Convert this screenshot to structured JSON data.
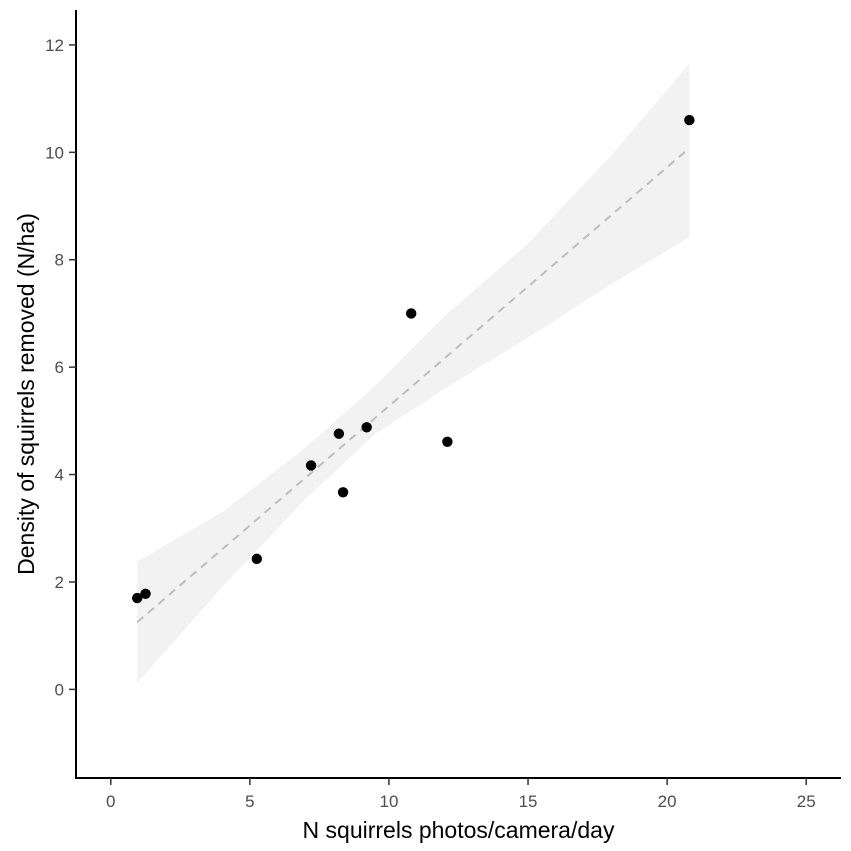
{
  "chart_data": {
    "type": "scatter",
    "title": "",
    "xlabel": "N squirrels photos/camera/day",
    "ylabel": "Density of squirrels removed (N/ha)",
    "xlim": [
      -1.25,
      26.25
    ],
    "ylim": [
      -1.65,
      12.65
    ],
    "x_ticks": [
      0,
      5,
      10,
      15,
      20,
      25
    ],
    "y_ticks": [
      0,
      2,
      4,
      6,
      8,
      10,
      12
    ],
    "grid": false,
    "legend": "none",
    "points": {
      "x": [
        0.95,
        1.25,
        5.25,
        7.2,
        8.2,
        8.35,
        9.2,
        10.8,
        12.1,
        20.8
      ],
      "y": [
        1.7,
        1.78,
        2.43,
        4.17,
        4.76,
        3.67,
        4.88,
        7.0,
        4.61,
        10.6
      ]
    },
    "fit_line": {
      "style": "dashed",
      "x": [
        0.95,
        20.8
      ],
      "y": [
        1.25,
        10.08
      ]
    },
    "confidence_band": {
      "x": [
        0.95,
        4.0,
        7.0,
        9.5,
        12.0,
        15.0,
        18.0,
        20.8
      ],
      "lower": [
        0.12,
        1.9,
        3.55,
        4.75,
        5.6,
        6.55,
        7.55,
        8.42
      ],
      "upper": [
        2.38,
        3.3,
        4.5,
        5.65,
        6.95,
        8.3,
        9.95,
        11.65
      ]
    },
    "colors": {
      "points": "#000000",
      "fit_line": "#bebebe",
      "band": "#f2f2f2",
      "axis": "#000000",
      "tick_text": "#4d4d4d"
    }
  }
}
